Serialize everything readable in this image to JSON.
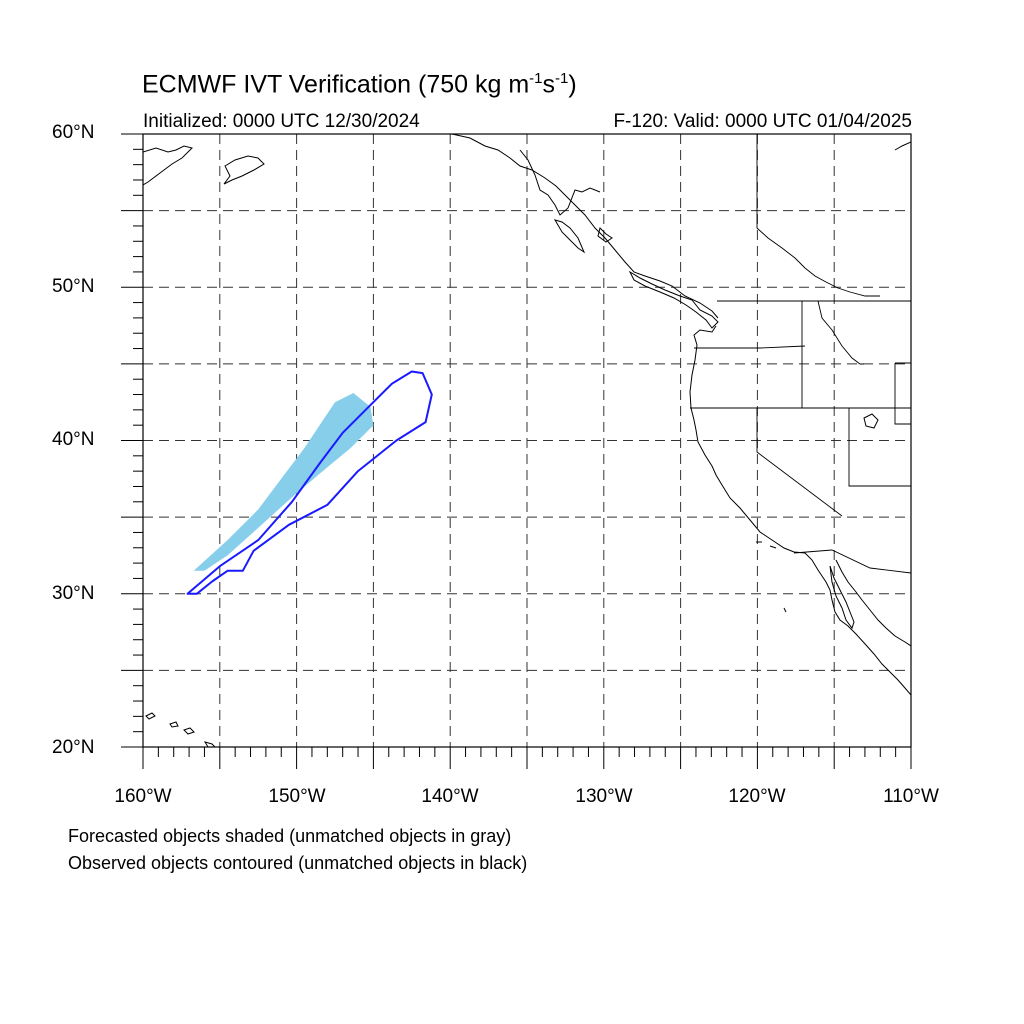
{
  "title": {
    "prefix": "ECMWF IVT Verification (750 kg m",
    "exp1": "-1",
    "mid": "s",
    "exp2": "-1",
    "suffix": ")"
  },
  "initialized": "Initialized: 0000 UTC 12/30/2024",
  "valid": "F-120: Valid: 0000 UTC 01/04/2025",
  "axes": {
    "lat_labels": [
      "60°N",
      "50°N",
      "40°N",
      "30°N",
      "20°N"
    ],
    "lon_labels": [
      "160°W",
      "150°W",
      "140°W",
      "130°W",
      "120°W",
      "110°W"
    ],
    "lat_range": [
      20,
      60
    ],
    "lon_range": [
      -160,
      -110
    ],
    "gridlines": "dashed, every 5°"
  },
  "legend": {
    "line1": "Forecasted objects shaded (unmatched objects in gray)",
    "line2": "Observed objects contoured (unmatched objects in black)"
  },
  "objects": {
    "forecast_fill_color": "#87ceeb",
    "observed_contour_color": "#1a1aff",
    "forecast_object": [
      [
        -156.7,
        31.5
      ],
      [
        -154.5,
        33.5
      ],
      [
        -152.5,
        35.5
      ],
      [
        -151.0,
        37.5
      ],
      [
        -149.5,
        39.5
      ],
      [
        -148.5,
        41.0
      ],
      [
        -147.5,
        42.5
      ],
      [
        -146.3,
        43.1
      ],
      [
        -145.2,
        42.2
      ],
      [
        -145.0,
        41.0
      ],
      [
        -146.5,
        39.5
      ],
      [
        -148.3,
        38.0
      ],
      [
        -150.3,
        36.3
      ],
      [
        -152.5,
        34.3
      ],
      [
        -154.5,
        32.5
      ],
      [
        -156.0,
        31.5
      ]
    ],
    "observed_object": [
      [
        -157.1,
        30.0
      ],
      [
        -155.0,
        31.8
      ],
      [
        -152.5,
        33.5
      ],
      [
        -150.3,
        36.0
      ],
      [
        -148.5,
        38.5
      ],
      [
        -147.0,
        40.5
      ],
      [
        -145.5,
        42.0
      ],
      [
        -143.8,
        43.7
      ],
      [
        -142.5,
        44.5
      ],
      [
        -141.8,
        44.4
      ],
      [
        -141.2,
        43.0
      ],
      [
        -141.6,
        41.2
      ],
      [
        -143.5,
        40.0
      ],
      [
        -146.0,
        38.0
      ],
      [
        -148.0,
        35.8
      ],
      [
        -150.5,
        34.5
      ],
      [
        -152.8,
        32.8
      ],
      [
        -153.5,
        31.5
      ],
      [
        -154.5,
        31.5
      ],
      [
        -155.5,
        30.8
      ],
      [
        -156.5,
        30.0
      ]
    ]
  }
}
